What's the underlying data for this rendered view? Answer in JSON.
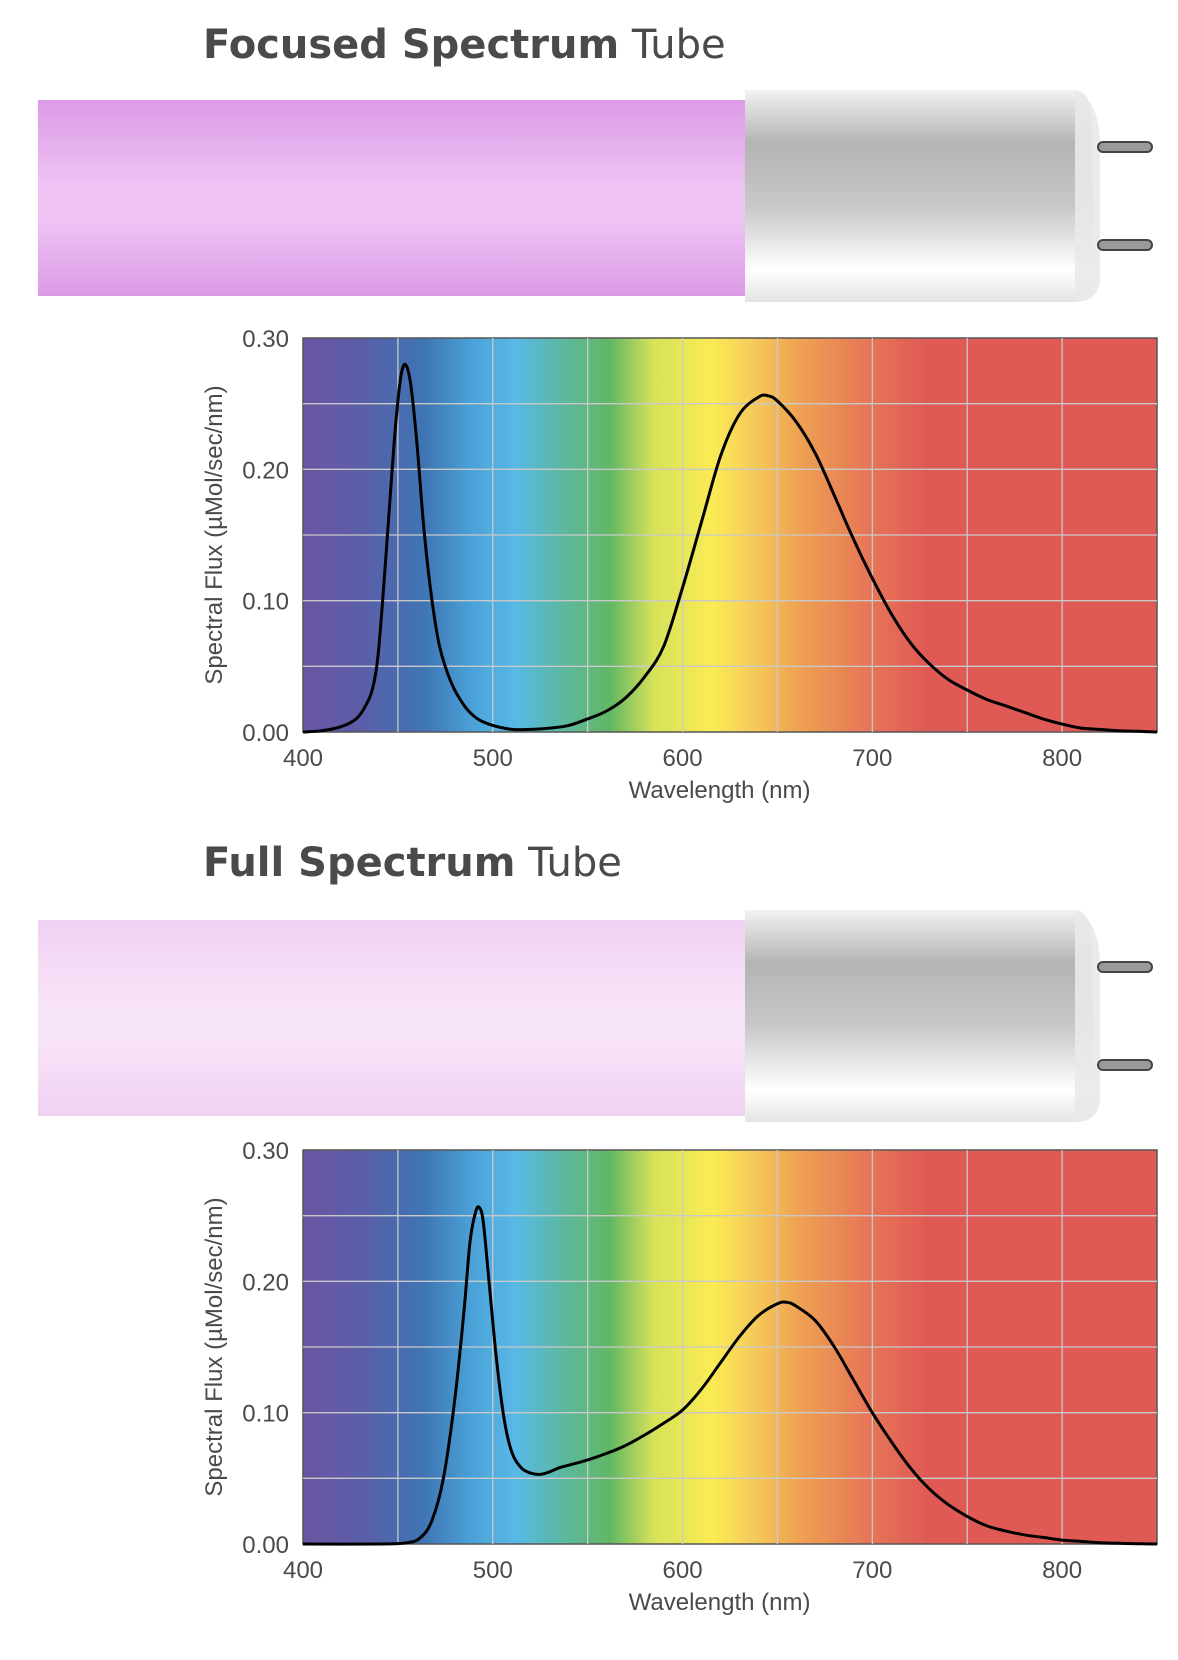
{
  "sections": [
    {
      "title_bold": "Focused Spectrum",
      "title_light": " Tube",
      "tube_color": "#dc9ae6",
      "tube_highlight": "#efc4f5",
      "chart_data": {
        "type": "line",
        "title": "",
        "xlabel": "Wavelength (nm)",
        "ylabel": "Spectral Flux (µMol/sec/nm)",
        "xlim": [
          400,
          850
        ],
        "ylim": [
          0,
          0.3
        ],
        "xticks": [
          "400",
          "500",
          "600",
          "700",
          "800"
        ],
        "yticks": [
          "0.00",
          "0.10",
          "0.20",
          "0.30"
        ],
        "grid": true,
        "series": [
          {
            "x": [
              400,
              410,
              420,
              428,
              433,
              437,
              440,
              444,
              448,
              451,
              453,
              455,
              457,
              460,
              464,
              468,
              472,
              478,
              485,
              492,
              500,
              510,
              520,
              530,
              540,
              550,
              560,
              570,
              580,
              590,
              600,
              610,
              620,
              630,
              640,
              645,
              650,
              660,
              670,
              680,
              690,
              700,
              710,
              720,
              730,
              740,
              750,
              760,
              770,
              780,
              790,
              800,
              810,
              820,
              830,
              840,
              850
            ],
            "y": [
              0.0,
              0.001,
              0.004,
              0.01,
              0.02,
              0.035,
              0.065,
              0.14,
              0.22,
              0.265,
              0.279,
              0.277,
              0.262,
              0.22,
              0.15,
              0.1,
              0.065,
              0.038,
              0.02,
              0.01,
              0.005,
              0.002,
              0.002,
              0.003,
              0.005,
              0.01,
              0.016,
              0.026,
              0.042,
              0.065,
              0.11,
              0.16,
              0.21,
              0.242,
              0.255,
              0.256,
              0.252,
              0.236,
              0.212,
              0.18,
              0.147,
              0.117,
              0.09,
              0.068,
              0.052,
              0.04,
              0.032,
              0.025,
              0.02,
              0.015,
              0.01,
              0.006,
              0.003,
              0.002,
              0.001,
              0.0005,
              0.0
            ]
          }
        ]
      }
    },
    {
      "title_bold": "Full Spectrum",
      "title_light": " Tube",
      "tube_color": "#efd2f1",
      "tube_highlight": "#f8e4f9",
      "chart_data": {
        "type": "line",
        "title": "",
        "xlabel": "Wavelength (nm)",
        "ylabel": "Spectral Flux (µMol/sec/nm)",
        "xlim": [
          400,
          850
        ],
        "ylim": [
          0,
          0.3
        ],
        "xticks": [
          "400",
          "500",
          "600",
          "700",
          "800"
        ],
        "yticks": [
          "0.00",
          "0.10",
          "0.20",
          "0.30"
        ],
        "grid": true,
        "series": [
          {
            "x": [
              400,
              440,
              455,
              462,
              468,
              474,
              480,
              485,
              488,
              491,
              493,
              495,
              498,
              502,
              506,
              510,
              515,
              520,
              525,
              530,
              535,
              540,
              550,
              560,
              570,
              580,
              590,
              600,
              610,
              620,
              630,
              640,
              650,
              655,
              660,
              670,
              680,
              690,
              700,
              710,
              720,
              730,
              740,
              750,
              760,
              770,
              780,
              790,
              800,
              810,
              820,
              830,
              840,
              850
            ],
            "y": [
              0.0,
              0.0,
              0.001,
              0.005,
              0.018,
              0.05,
              0.11,
              0.18,
              0.23,
              0.253,
              0.256,
              0.245,
              0.2,
              0.14,
              0.095,
              0.07,
              0.058,
              0.054,
              0.053,
              0.055,
              0.058,
              0.06,
              0.064,
              0.069,
              0.075,
              0.083,
              0.092,
              0.102,
              0.118,
              0.138,
              0.158,
              0.174,
              0.183,
              0.184,
              0.181,
              0.17,
              0.15,
              0.125,
              0.1,
              0.078,
              0.058,
              0.042,
              0.03,
              0.021,
              0.014,
              0.01,
              0.007,
              0.005,
              0.003,
              0.002,
              0.001,
              0.0005,
              0.0002,
              0.0
            ]
          }
        ]
      }
    }
  ]
}
